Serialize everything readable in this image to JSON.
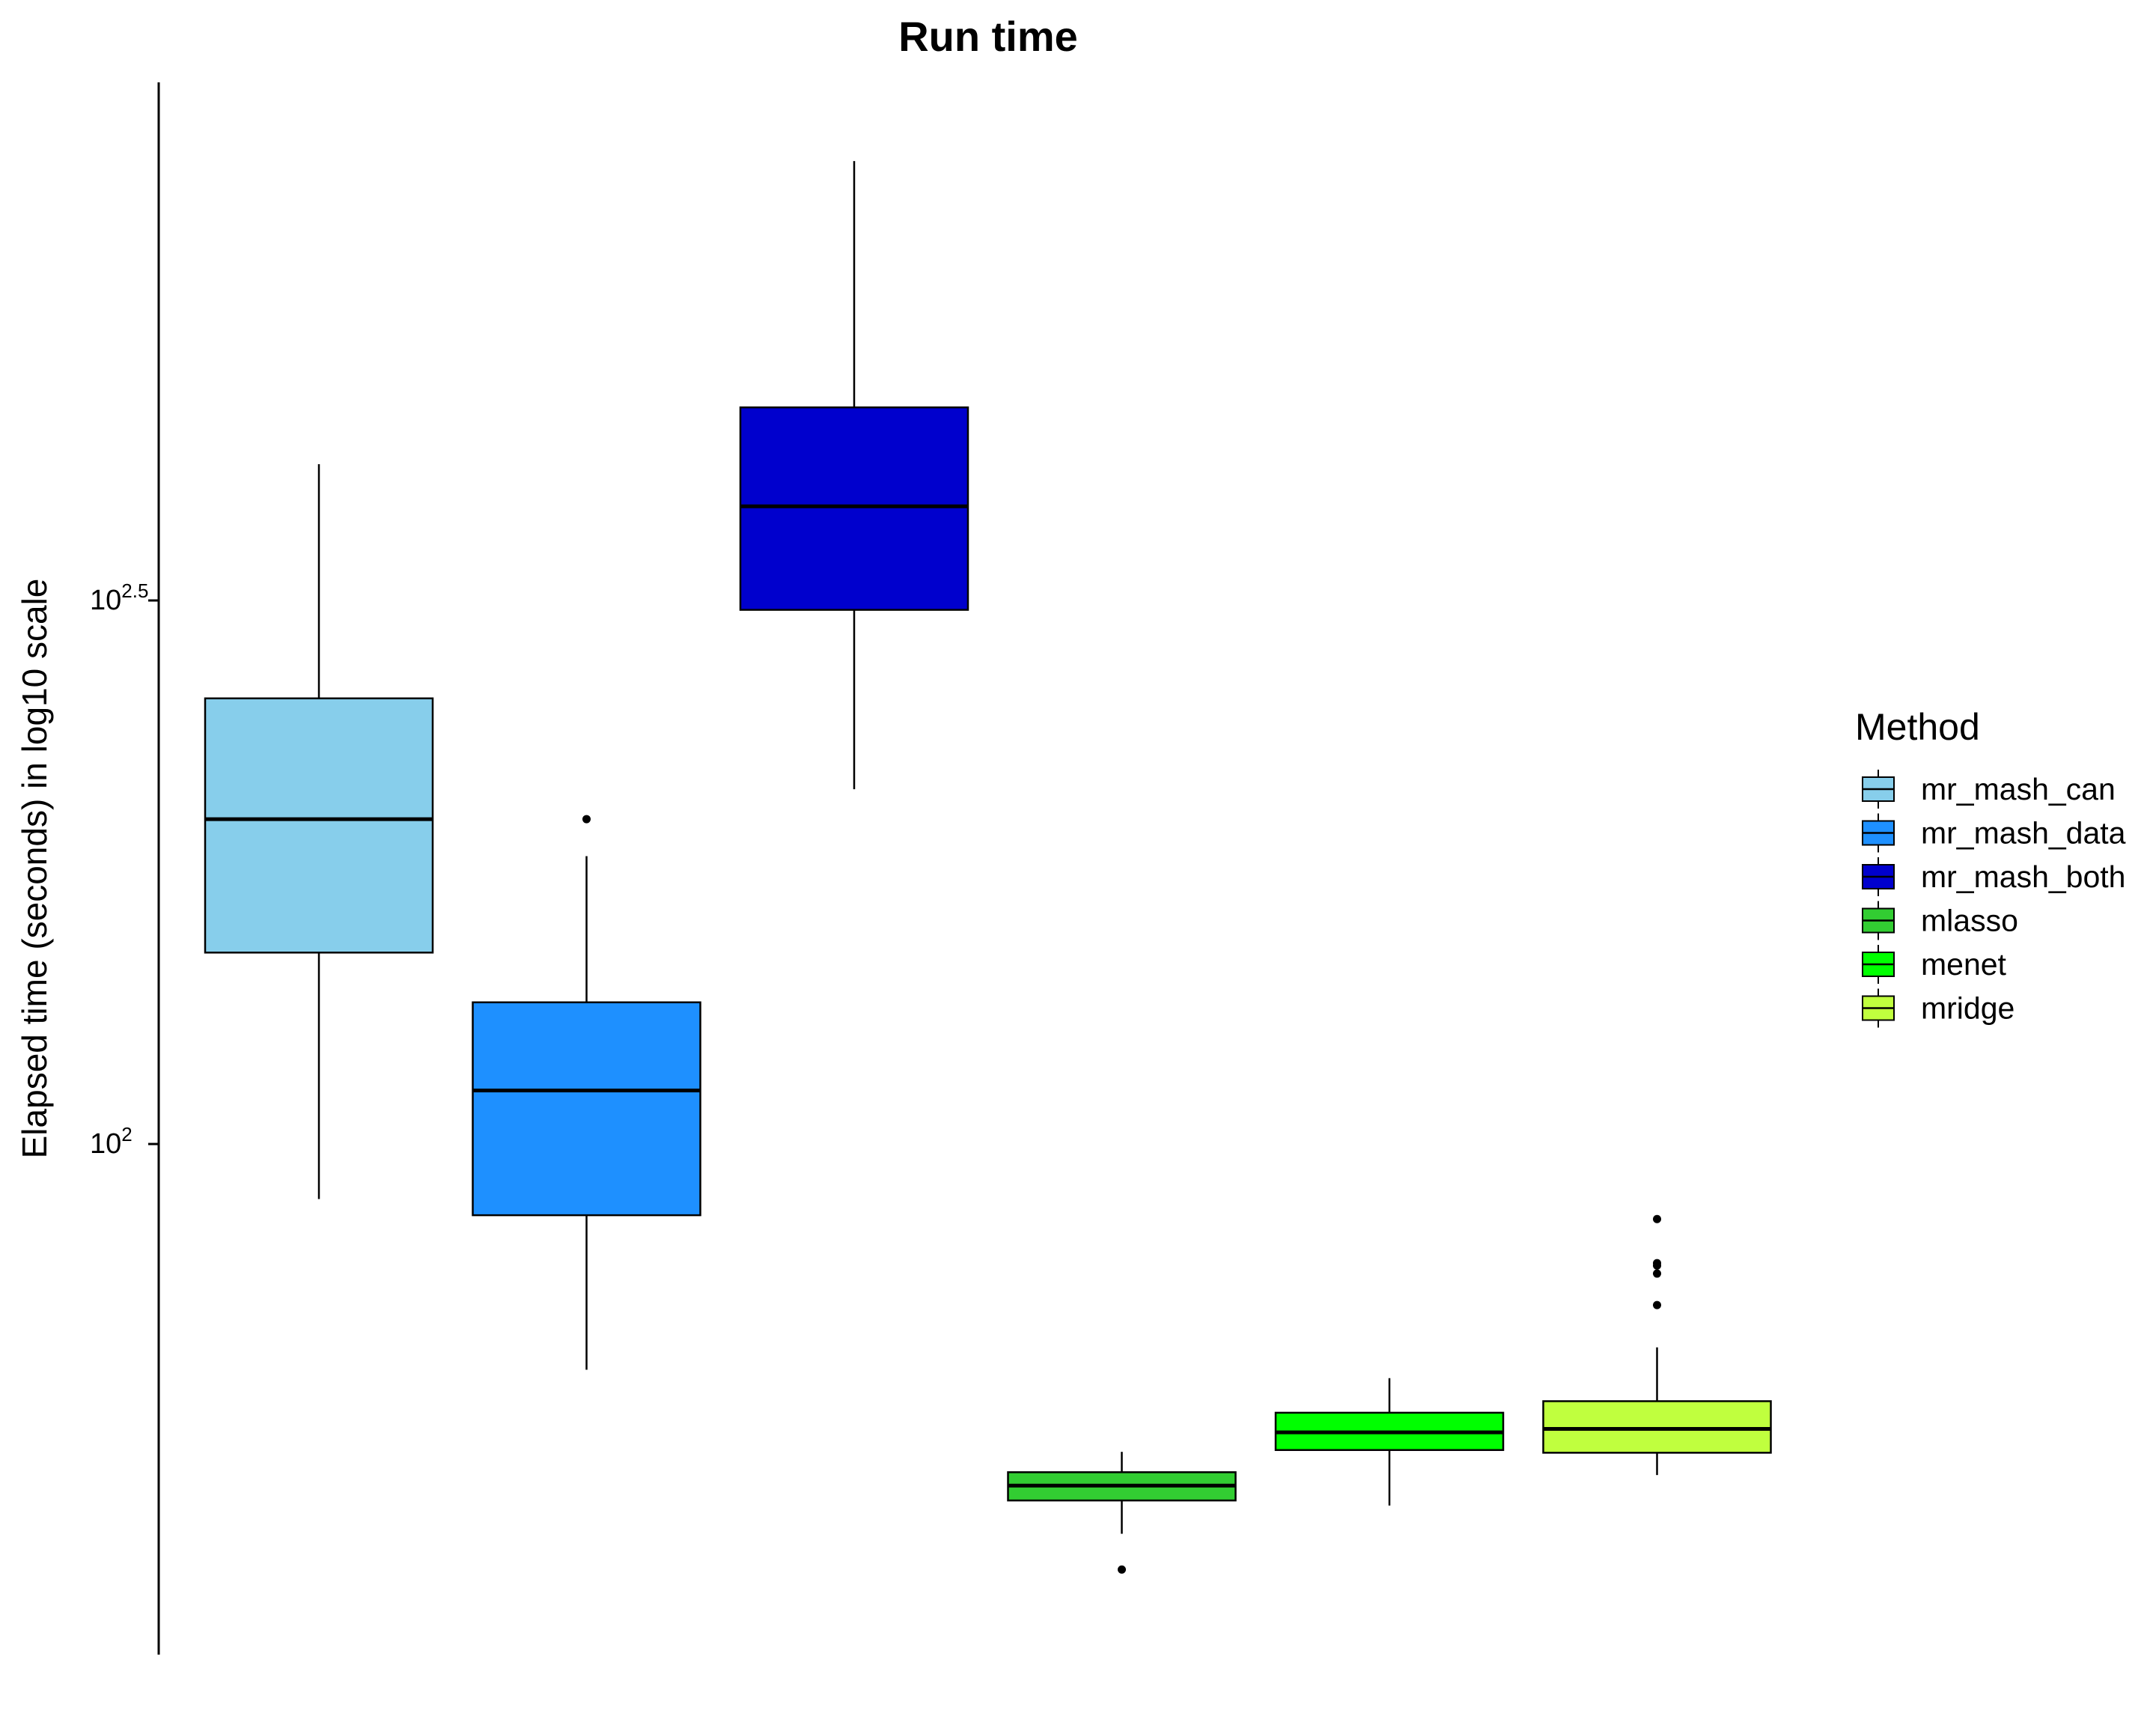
{
  "chart_data": {
    "type": "box",
    "title": "Run time",
    "xlabel": "",
    "ylabel": "Elapsed time (seconds) in log10 scale",
    "y_scale": "log10",
    "ylim_log10": [
      1.5,
      2.95
    ],
    "y_ticks": [
      {
        "log10": 2.0,
        "base": "10",
        "exp": "2"
      },
      {
        "log10": 2.5,
        "base": "10",
        "exp": "2.5"
      }
    ],
    "legend": {
      "title": "Method",
      "placement": "right"
    },
    "grid": false,
    "series": [
      {
        "name": "mr_mash_can",
        "color": "#87CEEB",
        "whisker_low": 89,
        "q1": 150,
        "median": 199,
        "q3": 257,
        "whisker_high": 422,
        "outliers": []
      },
      {
        "name": "mr_mash_data",
        "color": "#1E90FF",
        "whisker_low": 62,
        "q1": 86,
        "median": 112,
        "q3": 135,
        "whisker_high": 184,
        "outliers": [
          199
        ]
      },
      {
        "name": "mr_mash_both",
        "color": "#0000CD",
        "whisker_low": 212,
        "q1": 310,
        "median": 386,
        "q3": 476,
        "whisker_high": 802,
        "outliers": []
      },
      {
        "name": "mlasso",
        "color": "#32CD32",
        "whisker_low": 43.8,
        "q1": 47.0,
        "median": 48.5,
        "q3": 49.9,
        "whisker_high": 52.1,
        "outliers": [
          40.6
        ]
      },
      {
        "name": "menet",
        "color": "#00FF00",
        "whisker_low": 46.5,
        "q1": 52.3,
        "median": 54.3,
        "q3": 56.6,
        "whisker_high": 60.9,
        "outliers": []
      },
      {
        "name": "mridge",
        "color": "#C0FF3E",
        "whisker_low": 49.6,
        "q1": 52.0,
        "median": 54.7,
        "q3": 58.0,
        "whisker_high": 65.0,
        "outliers": [
          71.1,
          76.0,
          77.3,
          77.7,
          85.3
        ]
      }
    ]
  }
}
